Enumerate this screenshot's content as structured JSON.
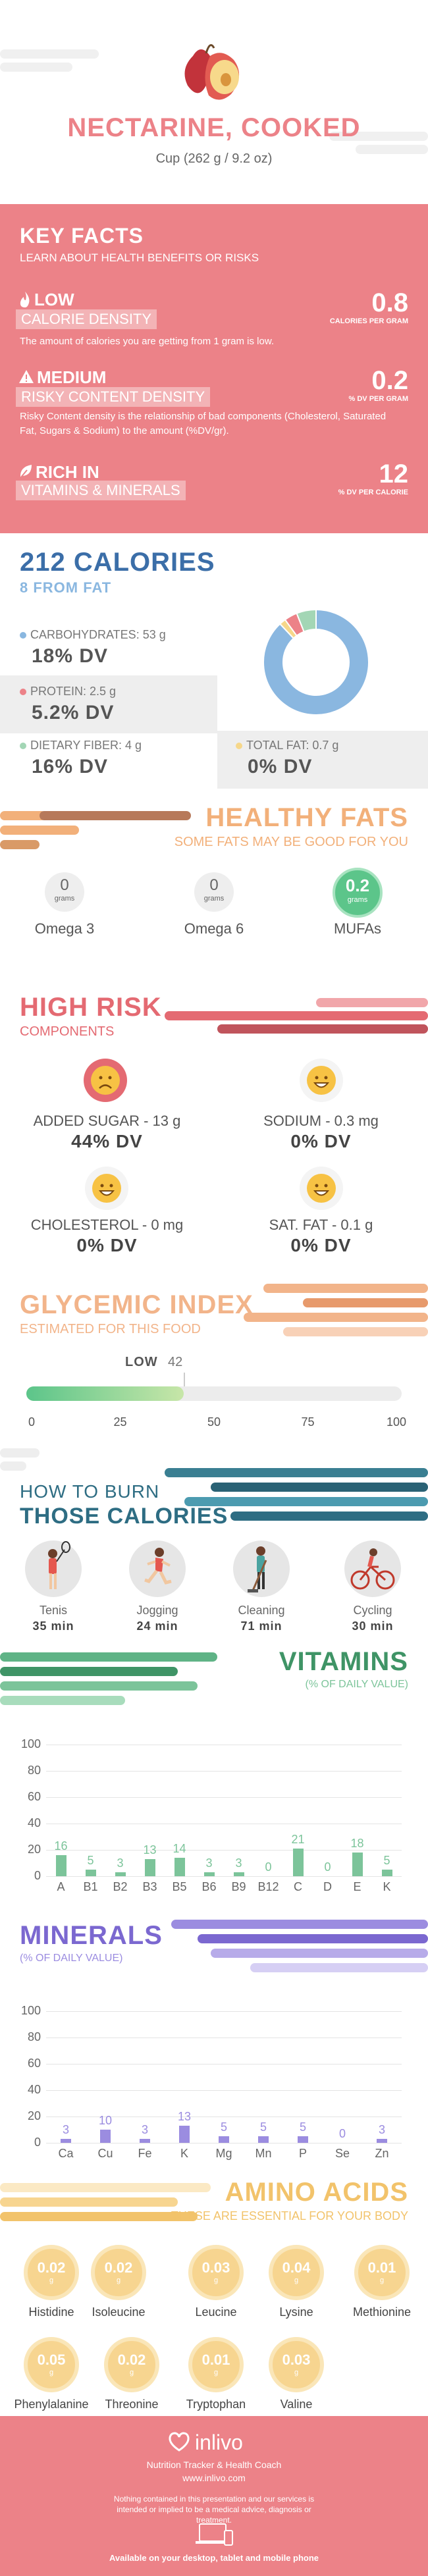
{
  "header": {
    "title": "NECTARINE, COOKED",
    "serving": "Cup (262 g / 9.2 oz)"
  },
  "key_facts": {
    "title": "KEY FACTS",
    "subtitle": "LEARN ABOUT HEALTH BENEFITS OR RISKS",
    "calorie": {
      "level": "LOW",
      "label": "CALORIE DENSITY",
      "value": "0.8",
      "unit": "CALORIES PER GRAM",
      "desc": "The amount of calories you are getting from 1 gram is low."
    },
    "risky": {
      "level": "MEDIUM",
      "label": "RISKY CONTENT DENSITY",
      "value": "0.2",
      "unit": "% DV PER GRAM",
      "desc": "Risky Content density is the relationship of bad components (Cholesterol, Saturated Fat, Sugars & Sodium) to the amount (%DV/gr)."
    },
    "rich": {
      "level": "RICH IN",
      "label": "VITAMINS & MINERALS",
      "value": "12",
      "unit": "% DV PER CALORIE"
    }
  },
  "calories": {
    "title": "212 CALORIES",
    "subtitle": "8 FROM FAT",
    "carbs": {
      "label": "CARBOHYDRATES: 53 g",
      "dv": "18% DV"
    },
    "protein": {
      "label": "PROTEIN: 2.5 g",
      "dv": "5.2% DV"
    },
    "fiber": {
      "label": "DIETARY FIBER: 4 g",
      "dv": "16% DV"
    },
    "fat": {
      "label": "TOTAL FAT: 0.7 g",
      "dv": "0% DV"
    }
  },
  "colors": {
    "carbs": "#8ab7e0",
    "protein": "#ec8288",
    "fiber": "#a3d6b5",
    "fat": "#f6d78a",
    "vitamins": "#7cc49a",
    "minerals": "#9b8ce0",
    "amino": "#f2c36b",
    "burn": "#3a7f92",
    "healthy_fats": "#f2b07a",
    "risk": "#e46a72",
    "glycemic": "#f2b48a"
  },
  "healthy_fats": {
    "title": "HEALTHY FATS",
    "subtitle": "SOME FATS MAY BE GOOD FOR YOU",
    "items": [
      {
        "value": "0",
        "unit": "grams",
        "name": "Omega 3"
      },
      {
        "value": "0",
        "unit": "grams",
        "name": "Omega 6"
      },
      {
        "value": "0.2",
        "unit": "grams",
        "name": "MUFAs"
      }
    ]
  },
  "high_risk": {
    "title": "HIGH RISK",
    "subtitle": "COMPONENTS",
    "items": [
      {
        "label": "ADDED SUGAR - 13 g",
        "dv": "44% DV"
      },
      {
        "label": "SODIUM - 0.3 mg",
        "dv": "0% DV"
      },
      {
        "label": "CHOLESTEROL - 0 mg",
        "dv": "0% DV"
      },
      {
        "label": "SAT. FAT - 0.1 g",
        "dv": "0% DV"
      }
    ]
  },
  "glycemic": {
    "title": "GLYCEMIC INDEX",
    "subtitle": "ESTIMATED FOR THIS FOOD",
    "level": "LOW",
    "value": 42,
    "ticks": [
      "0",
      "25",
      "50",
      "75",
      "100"
    ]
  },
  "burn": {
    "title1": "HOW TO BURN",
    "title2": "THOSE CALORIES",
    "items": [
      {
        "name": "Tenis",
        "time": "35 min"
      },
      {
        "name": "Jogging",
        "time": "24 min"
      },
      {
        "name": "Cleaning",
        "time": "71 min"
      },
      {
        "name": "Cycling",
        "time": "30 min"
      }
    ]
  },
  "vitamins": {
    "title": "VITAMINS",
    "subtitle": "(% OF DAILY VALUE)"
  },
  "minerals": {
    "title": "MINERALS",
    "subtitle": "(% OF DAILY VALUE)"
  },
  "chart_data": [
    {
      "type": "bar",
      "title": "VITAMINS",
      "ylabel": "(% OF DAILY VALUE)",
      "categories": [
        "A",
        "B1",
        "B2",
        "B3",
        "B5",
        "B6",
        "B9",
        "B12",
        "C",
        "D",
        "E",
        "K"
      ],
      "values": [
        16,
        5,
        3,
        13,
        14,
        3,
        3,
        0,
        21,
        0,
        18,
        5
      ],
      "ylim": [
        0,
        100
      ],
      "yticks": [
        "0",
        "20",
        "40",
        "60",
        "80",
        "100"
      ]
    },
    {
      "type": "bar",
      "title": "MINERALS",
      "ylabel": "(% OF DAILY VALUE)",
      "categories": [
        "Ca",
        "Cu",
        "Fe",
        "K",
        "Mg",
        "Mn",
        "P",
        "Se",
        "Zn"
      ],
      "values": [
        3,
        10,
        3,
        13,
        5,
        5,
        5,
        0,
        3
      ],
      "ylim": [
        0,
        100
      ],
      "yticks": [
        "0",
        "20",
        "40",
        "60",
        "80",
        "100"
      ]
    },
    {
      "type": "pie",
      "title": "212 CALORIES",
      "categories": [
        "Carbohydrates",
        "Protein",
        "Dietary fiber",
        "Total fat"
      ],
      "values": [
        88,
        4,
        6,
        2
      ]
    }
  ],
  "amino": {
    "title": "AMINO ACIDS",
    "subtitle": "THESE ARE ESSENTIAL FOR YOUR BODY",
    "unit": "g",
    "items": [
      {
        "value": "0.02",
        "name": "Histidine"
      },
      {
        "value": "0.02",
        "name": "Isoleucine"
      },
      {
        "value": "0.03",
        "name": "Leucine"
      },
      {
        "value": "0.04",
        "name": "Lysine"
      },
      {
        "value": "0.01",
        "name": "Methionine"
      },
      {
        "value": "0.05",
        "name": "Phenylalanine"
      },
      {
        "value": "0.02",
        "name": "Threonine"
      },
      {
        "value": "0.01",
        "name": "Tryptophan"
      },
      {
        "value": "0.03",
        "name": "Valine"
      }
    ]
  },
  "footer": {
    "brand": "inlivo",
    "tagline": "Nutrition Tracker & Health Coach",
    "url": "www.inlivo.com",
    "disclaimer": "Nothing contained in this presentation and our services is intended or implied to be a medical advice, diagnosis or treatment.",
    "available": "Available on your desktop, tablet and mobile phone"
  }
}
